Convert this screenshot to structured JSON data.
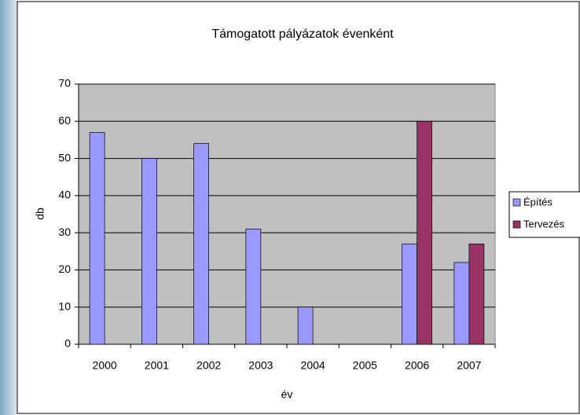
{
  "chart_data": {
    "type": "bar",
    "title": "Támogatott pályázatok évenként",
    "xlabel": "év",
    "ylabel": "db",
    "categories": [
      "2000",
      "2001",
      "2002",
      "2003",
      "2004",
      "2005",
      "2006",
      "2007"
    ],
    "series": [
      {
        "name": "Építés",
        "color": "#9999ff",
        "values": [
          57,
          50,
          54,
          31,
          10,
          null,
          27,
          22
        ]
      },
      {
        "name": "Tervezés",
        "color": "#993366",
        "values": [
          null,
          null,
          null,
          null,
          null,
          null,
          60,
          27
        ]
      }
    ],
    "ylim": [
      0,
      70
    ],
    "yticks": [
      0,
      10,
      20,
      30,
      40,
      50,
      60,
      70
    ],
    "grid": true,
    "legend": "right"
  }
}
